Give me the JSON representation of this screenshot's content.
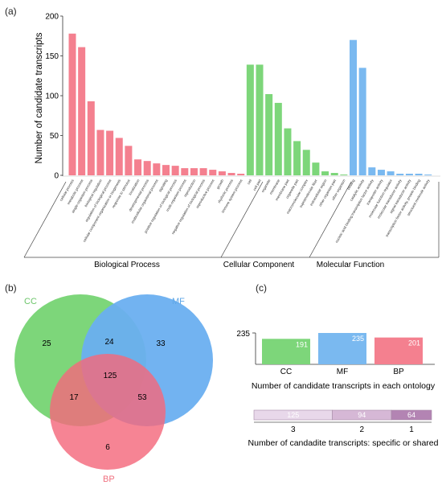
{
  "panels": {
    "a": "(a)",
    "b": "(b)",
    "c": "(c)"
  },
  "colors": {
    "bp": "#f4808f",
    "cc": "#7dd67a",
    "mf": "#7ab9f0",
    "venn_cc_label": "#6cc56a",
    "venn_mf_label": "#5ea6e6",
    "venn_bp_label": "#f0707f"
  },
  "chart_data": [
    {
      "type": "bar",
      "panel": "(a)",
      "ylabel": "Number of candidate transcripts",
      "ylim": [
        0,
        200
      ],
      "yticks": [
        0,
        50,
        100,
        150,
        200
      ],
      "groups": [
        {
          "name": "Biological Process",
          "color": "#f4808f",
          "categories": [
            "cellular process",
            "metabolic process",
            "single-organism process",
            "biological regulation",
            "regulation of biological process",
            "cellular component organization or biogenesis",
            "response to stimulus",
            "localization",
            "developmental process",
            "multicellular organismal process",
            "signaling",
            "positive regulation of biological process",
            "multi-organism process",
            "reproduction",
            "negative regulation of biological process",
            "reproductive process",
            "growth",
            "rhythmic process",
            "immune system process"
          ],
          "values": [
            178,
            161,
            93,
            57,
            56,
            47,
            37,
            20,
            18,
            15,
            13,
            12,
            9,
            9,
            9,
            7,
            5,
            3,
            2
          ]
        },
        {
          "name": "Cellular Component",
          "color": "#7dd67a",
          "categories": [
            "cell",
            "cell part",
            "organelle",
            "membrane",
            "membrane part",
            "organelle part",
            "macromolecular complex",
            "supramolecular fiber",
            "extracellular region",
            "other organism part",
            "other organism"
          ],
          "values": [
            139,
            139,
            102,
            91,
            59,
            43,
            32,
            16,
            5,
            3,
            1
          ]
        },
        {
          "name": "Molecular Function",
          "color": "#7ab9f0",
          "categories": [
            "binding",
            "catalytic activity",
            "nucleic acid binding transcription factor activity",
            "transporter activity",
            "molecular function regulator",
            "molecular transducer activity",
            "signal transducer activity",
            "transcription factor activity, protein binding",
            "structural molecule activity"
          ],
          "values": [
            170,
            135,
            10,
            7,
            5,
            2,
            2,
            2,
            1
          ]
        }
      ]
    },
    {
      "type": "venn",
      "panel": "(b)",
      "sets": [
        "CC",
        "MF",
        "BP"
      ],
      "regions": {
        "CC_only": "25",
        "MF_only": "33",
        "BP_only": "6",
        "CC_MF": "24",
        "CC_BP": "17",
        "MF_BP": "53",
        "CC_MF_BP": "125"
      }
    },
    {
      "type": "bar",
      "panel": "(c)",
      "xlabel": "Number of candidate transcripts in each ontology",
      "ytick": "235",
      "categories": [
        "CC",
        "MF",
        "BP"
      ],
      "values": [
        191,
        235,
        201
      ],
      "value_labels": [
        "191",
        "235",
        "201"
      ]
    },
    {
      "type": "bar",
      "panel": "(c)",
      "orientation": "stacked-horizontal",
      "xlabel": "Number of candadite transcripts: specific or shared",
      "categories": [
        "3",
        "2",
        "1"
      ],
      "values": [
        125,
        94,
        64
      ],
      "value_labels": [
        "125",
        "94",
        "64"
      ]
    }
  ]
}
